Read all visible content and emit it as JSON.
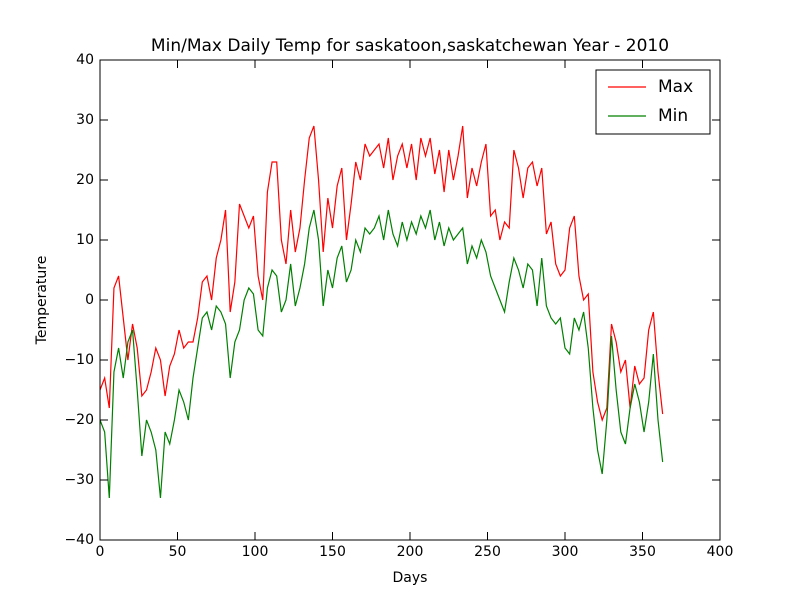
{
  "chart_data": {
    "type": "line",
    "title": "Min/Max Daily Temp for saskatoon,saskatchewan Year - 2010",
    "xlabel": "Days",
    "ylabel": "Temperature",
    "x": [
      0,
      3,
      6,
      9,
      12,
      15,
      18,
      21,
      24,
      27,
      30,
      33,
      36,
      39,
      42,
      45,
      48,
      51,
      54,
      57,
      60,
      63,
      66,
      69,
      72,
      75,
      78,
      81,
      84,
      87,
      90,
      93,
      96,
      99,
      102,
      105,
      108,
      111,
      114,
      117,
      120,
      123,
      126,
      129,
      132,
      135,
      138,
      141,
      144,
      147,
      150,
      153,
      156,
      159,
      162,
      165,
      168,
      171,
      174,
      177,
      180,
      183,
      186,
      189,
      192,
      195,
      198,
      201,
      204,
      207,
      210,
      213,
      216,
      219,
      222,
      225,
      228,
      231,
      234,
      237,
      240,
      243,
      246,
      249,
      252,
      255,
      258,
      261,
      264,
      267,
      270,
      273,
      276,
      279,
      282,
      285,
      288,
      291,
      294,
      297,
      300,
      303,
      306,
      309,
      312,
      315,
      318,
      321,
      324,
      327,
      330,
      333,
      336,
      339,
      342,
      345,
      348,
      351,
      354,
      357,
      360,
      363
    ],
    "series": [
      {
        "name": "Max",
        "color": "#ff0000",
        "values": [
          -15,
          -13,
          -18,
          2,
          4,
          -3,
          -10,
          -4,
          -8,
          -16,
          -15,
          -12,
          -8,
          -10,
          -16,
          -11,
          -9,
          -5,
          -8,
          -7,
          -7,
          -3,
          3,
          4,
          0,
          7,
          10,
          15,
          -2,
          3,
          16,
          14,
          12,
          14,
          4,
          0,
          18,
          23,
          23,
          10,
          6,
          15,
          8,
          12,
          20,
          27,
          29,
          20,
          8,
          17,
          12,
          19,
          22,
          10,
          16,
          23,
          20,
          26,
          24,
          25,
          26,
          22,
          27,
          20,
          24,
          26,
          22,
          26,
          20,
          27,
          24,
          27,
          21,
          25,
          18,
          25,
          20,
          24,
          29,
          17,
          22,
          19,
          23,
          26,
          14,
          15,
          10,
          13,
          12,
          25,
          22,
          17,
          22,
          23,
          19,
          22,
          11,
          13,
          6,
          4,
          5,
          12,
          14,
          4,
          0,
          1,
          -12,
          -17,
          -20,
          -18,
          -4,
          -7,
          -12,
          -10,
          -18,
          -11,
          -14,
          -13,
          -5,
          -2,
          -12,
          -19
        ]
      },
      {
        "name": "Min",
        "color": "#008000",
        "values": [
          -20,
          -22,
          -33,
          -12,
          -8,
          -13,
          -7,
          -5,
          -15,
          -26,
          -20,
          -22,
          -25,
          -33,
          -22,
          -24,
          -20,
          -15,
          -17,
          -20,
          -13,
          -8,
          -3,
          -2,
          -5,
          -1,
          -2,
          -4,
          -13,
          -7,
          -5,
          0,
          2,
          1,
          -5,
          -6,
          2,
          5,
          4,
          -2,
          0,
          6,
          -1,
          2,
          6,
          12,
          15,
          10,
          -1,
          5,
          2,
          7,
          9,
          3,
          5,
          10,
          8,
          12,
          11,
          12,
          14,
          10,
          15,
          11,
          9,
          13,
          10,
          13,
          11,
          14,
          12,
          15,
          10,
          13,
          9,
          12,
          10,
          11,
          12,
          6,
          9,
          7,
          10,
          8,
          4,
          2,
          0,
          -2,
          3,
          7,
          5,
          2,
          6,
          5,
          -1,
          7,
          -1,
          -3,
          -4,
          -3,
          -8,
          -9,
          -3,
          -5,
          -2,
          -8,
          -18,
          -25,
          -29,
          -20,
          -6,
          -15,
          -22,
          -24,
          -18,
          -14,
          -17,
          -22,
          -17,
          -9,
          -20,
          -27
        ]
      }
    ],
    "xlim": [
      0,
      400
    ],
    "xticks": [
      0,
      50,
      100,
      150,
      200,
      250,
      300,
      350,
      400
    ],
    "ylim": [
      -40,
      40
    ],
    "yticks": [
      {
        "value": -40,
        "label": "−40"
      },
      {
        "value": -30,
        "label": "−30"
      },
      {
        "value": -20,
        "label": "−20"
      },
      {
        "value": -10,
        "label": "−10"
      },
      0,
      10,
      20,
      30,
      40
    ],
    "legend": "upper right",
    "grid": false
  }
}
